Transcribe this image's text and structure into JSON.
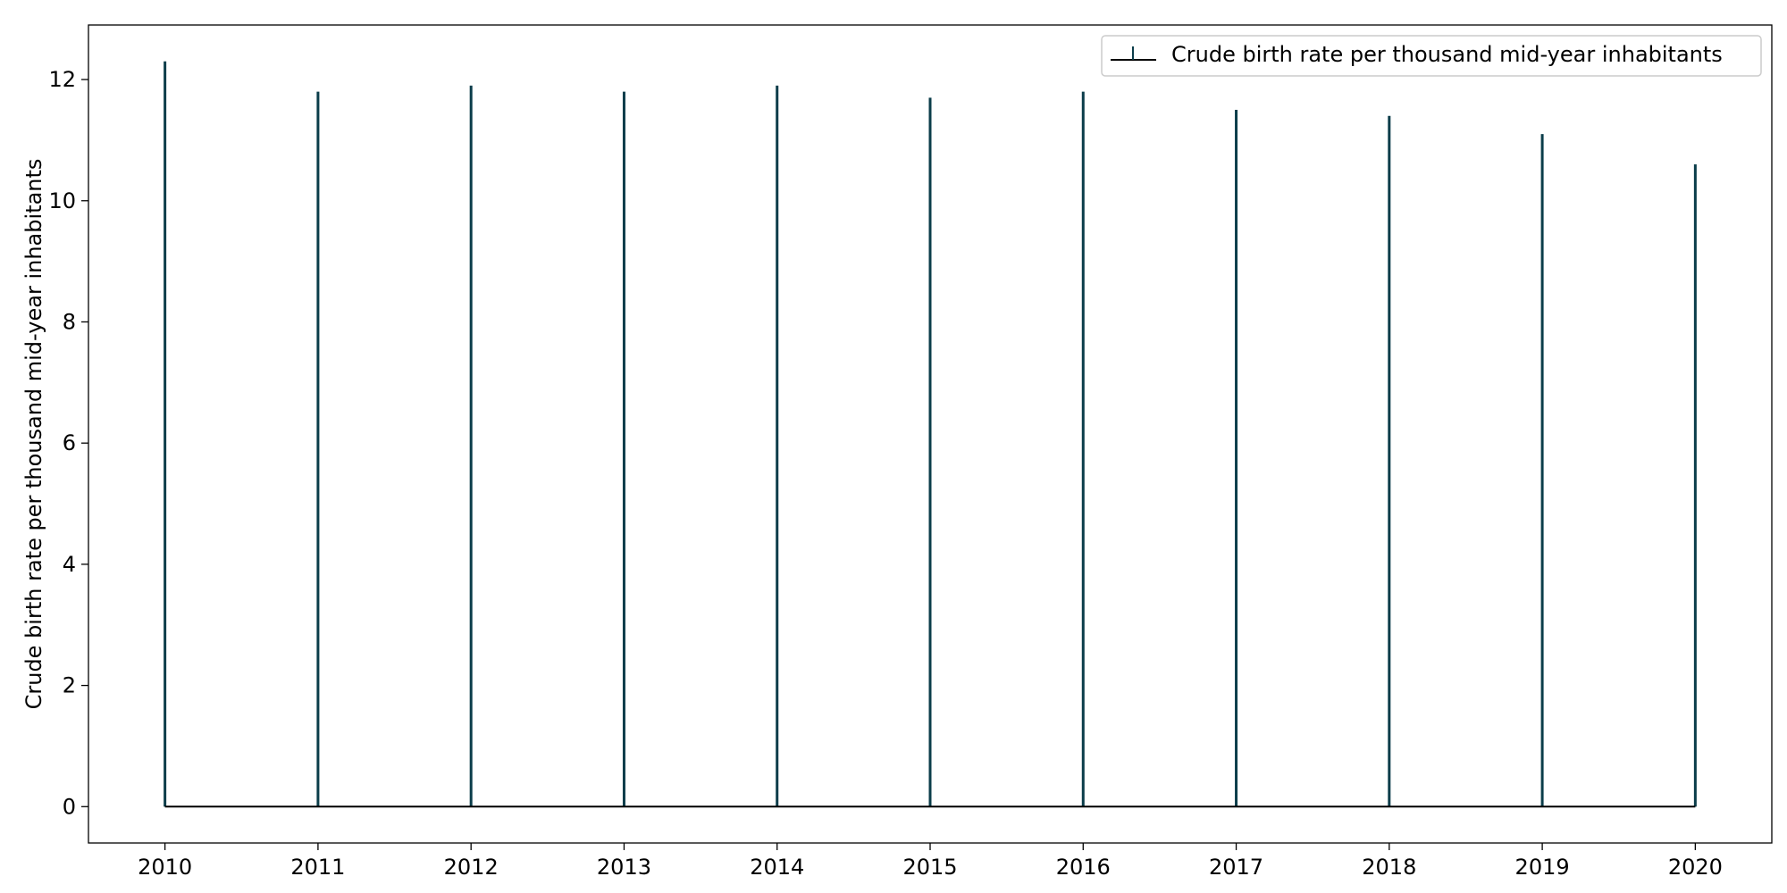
{
  "chart_data": {
    "type": "bar",
    "title": "",
    "xlabel": "",
    "ylabel": "Crude birth rate per thousand mid-year inhabitants",
    "xlim": [
      2009.5,
      2020.5
    ],
    "ylim": [
      -0.6,
      12.9
    ],
    "x_ticks": [
      "2010",
      "2011",
      "2012",
      "2013",
      "2014",
      "2015",
      "2016",
      "2017",
      "2018",
      "2019",
      "2020"
    ],
    "y_ticks": [
      "0",
      "2",
      "4",
      "6",
      "8",
      "10",
      "12"
    ],
    "grid": false,
    "legend_position": "top-right",
    "series": [
      {
        "name": "Crude birth rate per thousand mid-year inhabitants",
        "color": "#0b3d4a",
        "x": [
          2010,
          2011,
          2012,
          2013,
          2014,
          2015,
          2016,
          2017,
          2018,
          2019,
          2020
        ],
        "values": [
          12.3,
          11.8,
          11.9,
          11.8,
          11.9,
          11.7,
          11.8,
          11.5,
          11.4,
          11.1,
          10.6
        ]
      }
    ]
  }
}
